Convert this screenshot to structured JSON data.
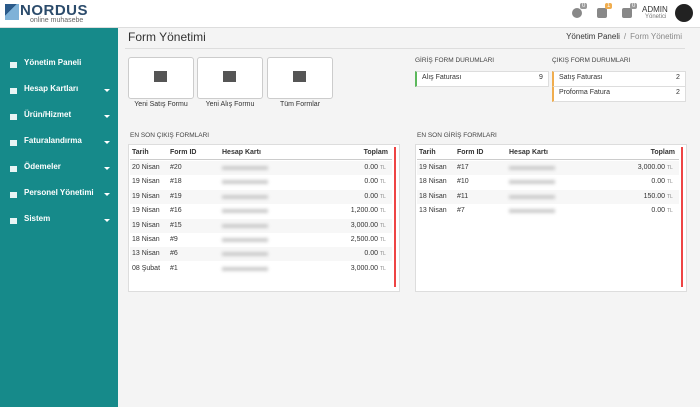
{
  "header": {
    "logo": "NORDUS",
    "tagline": "online muhasebe",
    "badges": [
      0,
      1,
      0
    ],
    "user": "ADMIN",
    "role": "Yönetici"
  },
  "sidebar": [
    "Yönetim Paneli",
    "Hesap Kartları",
    "Ürün/Hizmet",
    "Faturalandırma",
    "Ödemeler",
    "Personel Yönetimi",
    "Sistem"
  ],
  "page": {
    "title": "Form Yönetimi",
    "breadcrumb": [
      "Yönetim Paneli",
      "/",
      "Form Yönetimi"
    ]
  },
  "buttons": [
    "Yeni Satış Formu",
    "Yeni Alış Formu",
    "Tüm Formlar"
  ],
  "incoming_status": {
    "title": "GİRİŞ FORM DURUMLARI",
    "items": [
      {
        "label": "Alış Faturası",
        "count": 9
      }
    ]
  },
  "outgoing_status": {
    "title": "ÇIKIŞ FORM DURUMLARI",
    "items": [
      {
        "label": "Satış Faturası",
        "count": 2
      },
      {
        "label": "Proforma Fatura",
        "count": 2
      }
    ]
  },
  "currency": "TL",
  "outgoing_table": {
    "title": "EN SON ÇIKIŞ FORMLARI",
    "columns": [
      "Tarih",
      "Form ID",
      "Hesap Kartı",
      "Toplam"
    ],
    "rows": [
      [
        "20 Nisan",
        "#20",
        "0.00"
      ],
      [
        "19 Nisan",
        "#18",
        "0.00"
      ],
      [
        "19 Nisan",
        "#19",
        "0.00"
      ],
      [
        "19 Nisan",
        "#16",
        "1,200.00"
      ],
      [
        "19 Nisan",
        "#15",
        "3,000.00"
      ],
      [
        "18 Nisan",
        "#9",
        "2,500.00"
      ],
      [
        "13 Nisan",
        "#6",
        "0.00"
      ],
      [
        "08 Şubat",
        "#1",
        "3,000.00"
      ]
    ]
  },
  "incoming_table": {
    "title": "EN SON GİRİŞ FORMLARI",
    "columns": [
      "Tarih",
      "Form ID",
      "Hesap Kartı",
      "Toplam"
    ],
    "rows": [
      [
        "19 Nisan",
        "#17",
        "3,000.00"
      ],
      [
        "18 Nisan",
        "#10",
        "0.00"
      ],
      [
        "18 Nisan",
        "#11",
        "150.00"
      ],
      [
        "13 Nisan",
        "#7",
        "0.00"
      ]
    ]
  }
}
